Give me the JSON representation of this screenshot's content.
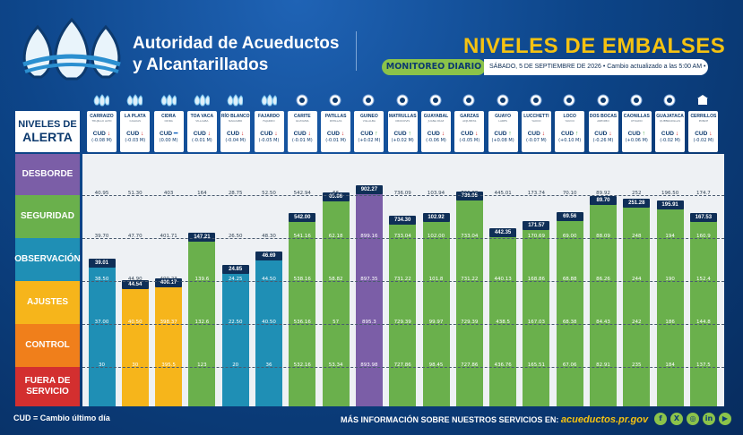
{
  "header": {
    "org_line1": "Autoridad de Acueductos",
    "org_line2": "y Alcantarillados",
    "title_a": "NIVELES DE",
    "title_b": "EMBALSES",
    "monitor_label": "MONITOREO DIARIO",
    "monitor_info": "SÁBADO, 5 DE SEPTIEMBRE DE 2026 • Cambio actualizado a las 5:00 AM •"
  },
  "levels": {
    "head_1": "NIVELES DE",
    "head_2": "ALERTA",
    "items": [
      {
        "label": "DESBORDE",
        "color": "#7b5ea7"
      },
      {
        "label": "SEGURIDAD",
        "color": "#6ab04c"
      },
      {
        "label": "OBSERVACIÓN",
        "color": "#1f8fb5"
      },
      {
        "label": "AJUSTES",
        "color": "#f6b51b"
      },
      {
        "label": "CONTROL",
        "color": "#f07f1b"
      },
      {
        "label": "FUERA DE SERVICIO",
        "color": "#d32f2f"
      }
    ]
  },
  "cud_label": "CUD",
  "reservoirs": [
    {
      "name": "CARRAIZO",
      "sub": "TRUJILLO ALTO",
      "icon": "aaa-drops-icon",
      "dir": "down",
      "change": "(-0.08 M)",
      "current": "39.01",
      "level": "OBSERVACIÓN",
      "thresholds": [
        "40.95",
        "39.70",
        "38.50",
        "37.00",
        "30"
      ]
    },
    {
      "name": "LA PLATA",
      "sub": "CAGUAS",
      "icon": "aaa-drops-icon",
      "dir": "down",
      "change": "(-0.03 M)",
      "current": "44.54",
      "level": "AJUSTES",
      "thresholds": [
        "51.30",
        "47.70",
        "44.90",
        "40.50",
        "30"
      ]
    },
    {
      "name": "CIDRA",
      "sub": "CIDRA",
      "icon": "aaa-drops-icon",
      "dir": "flat",
      "change": "(0.00 M)",
      "current": "400.17",
      "level": "AJUSTES",
      "thresholds": [
        "403",
        "401.71",
        "400.23",
        "398.37",
        "395.5"
      ]
    },
    {
      "name": "TOA VACA",
      "sub": "VILLALBA",
      "icon": "aaa-drops-icon",
      "dir": "down",
      "change": "(-0.01 M)",
      "current": "147.21",
      "level": "SEGURIDAD",
      "thresholds": [
        "164",
        "147",
        "139.6",
        "132.6",
        "123"
      ]
    },
    {
      "name": "RÍO BLANCO",
      "sub": "NAGUABO",
      "icon": "aaa-drops-icon",
      "dir": "down",
      "change": "(-0.04 M)",
      "current": "24.85",
      "level": "OBSERVACIÓN",
      "thresholds": [
        "28.75",
        "26.50",
        "24.25",
        "22.50",
        "20"
      ]
    },
    {
      "name": "FAJARDO",
      "sub": "FAJARDO",
      "icon": "aaa-drops-icon",
      "dir": "down",
      "change": "(-0.05 M)",
      "current": "46.69",
      "level": "OBSERVACIÓN",
      "thresholds": [
        "52.50",
        "48.30",
        "44.50",
        "40.50",
        "36"
      ]
    },
    {
      "name": "CARITE",
      "sub": "GUAYAMA",
      "icon": "aee-icon",
      "dir": "down",
      "change": "(-0.01 M)",
      "current": "542.00",
      "level": "SEGURIDAD",
      "thresholds": [
        "542.94",
        "541.16",
        "538.16",
        "536.16",
        "532.16"
      ]
    },
    {
      "name": "PATILLAS",
      "sub": "PATILLAS",
      "icon": "aee-icon",
      "dir": "down",
      "change": "(-0.01 M)",
      "current": "65.86",
      "level": "SEGURIDAD",
      "thresholds": [
        "66",
        "62.18",
        "58.82",
        "57",
        "53.34"
      ]
    },
    {
      "name": "GUINEO",
      "sub": "VILLALBA",
      "icon": "aee-icon",
      "dir": "up",
      "change": "(+0.02 M)",
      "current": "902.27",
      "level": "DESBORDE",
      "thresholds": [
        "902.27",
        "899.16",
        "897.35",
        "895.3",
        "893.98"
      ]
    },
    {
      "name": "MATRULLAS",
      "sub": "OROCOVIS",
      "icon": "aee-icon",
      "dir": "up",
      "change": "(+0.02 M)",
      "current": "734.30",
      "level": "SEGURIDAD",
      "thresholds": [
        "736.09",
        "733.04",
        "731.22",
        "729.39",
        "727.86"
      ]
    },
    {
      "name": "GUAYABAL",
      "sub": "JUANA DÍAZ",
      "icon": "aee-icon",
      "dir": "down",
      "change": "(-0.06 M)",
      "current": "102.92",
      "level": "SEGURIDAD",
      "thresholds": [
        "103.94",
        "102.00",
        "101.8",
        "99.97",
        "98.45"
      ]
    },
    {
      "name": "GARZAS",
      "sub": "ADJUNTAS",
      "icon": "aee-icon",
      "dir": "down",
      "change": "(-0.05 M)",
      "current": "736.05",
      "level": "SEGURIDAD",
      "thresholds": [
        "736.09",
        "733.04",
        "731.22",
        "729.39",
        "727.86"
      ]
    },
    {
      "name": "GUAYO",
      "sub": "LARES",
      "icon": "aee-icon",
      "dir": "up",
      "change": "(+0.08 M)",
      "current": "442.35",
      "level": "SEGURIDAD",
      "thresholds": [
        "445.01",
        "442.00",
        "440.13",
        "438.5",
        "436.76"
      ]
    },
    {
      "name": "LUCCHETTI",
      "sub": "YAUCO",
      "icon": "aee-icon",
      "dir": "down",
      "change": "(-0.07 M)",
      "current": "171.57",
      "level": "SEGURIDAD",
      "thresholds": [
        "173.74",
        "170.69",
        "168.86",
        "167.03",
        "165.51"
      ]
    },
    {
      "name": "LOCO",
      "sub": "YAUCO",
      "icon": "aee-icon",
      "dir": "up",
      "change": "(+0.10 M)",
      "current": "69.56",
      "level": "SEGURIDAD",
      "thresholds": [
        "70.10",
        "69.00",
        "68.88",
        "68.38",
        "67.06"
      ]
    },
    {
      "name": "DOS BOCAS",
      "sub": "ARECIBO",
      "icon": "aee-icon",
      "dir": "down",
      "change": "(-0.26 M)",
      "current": "89.70",
      "level": "SEGURIDAD",
      "thresholds": [
        "89.92",
        "88.09",
        "86.26",
        "84.43",
        "82.91"
      ]
    },
    {
      "name": "CAONILLAS",
      "sub": "UTUADO",
      "icon": "aee-icon",
      "dir": "up",
      "change": "(+0.06 M)",
      "current": "251.28",
      "level": "SEGURIDAD",
      "thresholds": [
        "252",
        "248",
        "244",
        "242",
        "235"
      ]
    },
    {
      "name": "GUAJATACA",
      "sub": "QUEBRADILLAS",
      "icon": "aee-icon",
      "dir": "down",
      "change": "(-0.02 M)",
      "current": "195.91",
      "level": "SEGURIDAD",
      "thresholds": [
        "196.50",
        "194",
        "190",
        "186",
        "184"
      ]
    },
    {
      "name": "CERRILLOS",
      "sub": "PONCE",
      "icon": "usace-icon",
      "dir": "down",
      "change": "(-0.02 M)",
      "current": "167.53",
      "level": "SEGURIDAD",
      "thresholds": [
        "174.7",
        "160.9",
        "152.4",
        "144.8",
        "137.5"
      ]
    }
  ],
  "footer": {
    "cud_note": "CUD = Cambio último día",
    "more_info": "MÁS INFORMACIÓN SOBRE NUESTROS SERVICIOS EN:",
    "url": "acueductos.pr.gov",
    "social": [
      {
        "icon": "facebook-icon",
        "glyph": "f"
      },
      {
        "icon": "x-icon",
        "glyph": "X"
      },
      {
        "icon": "instagram-icon",
        "glyph": "◎"
      },
      {
        "icon": "linkedin-icon",
        "glyph": "in"
      },
      {
        "icon": "youtube-icon",
        "glyph": "▶"
      }
    ]
  },
  "colors": {
    "up": "#4caf50",
    "down": "#d32f2f",
    "flat": "#1565c0"
  }
}
